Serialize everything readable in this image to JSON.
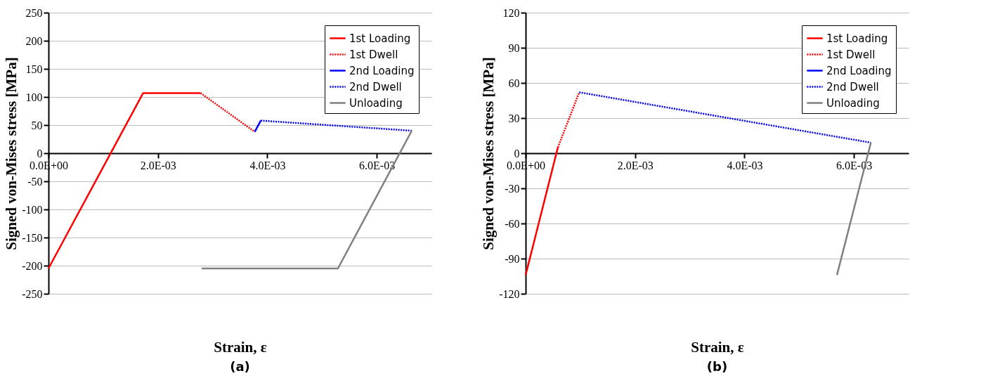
{
  "chart_data": [
    {
      "type": "line",
      "xlabel": "Strain, ε",
      "ylabel": "Signed von-Mises stress [MPa]",
      "annotations": [
        "(a)"
      ],
      "xlim": [
        0,
        0.007
      ],
      "xticks": [
        {
          "value": 0,
          "label": "0.0E+00"
        },
        {
          "value": 0.002,
          "label": "2.0E-03"
        },
        {
          "value": 0.004,
          "label": "4.0E-03"
        },
        {
          "value": 0.006,
          "label": "6.0E-03"
        }
      ],
      "ylim": [
        -250,
        250
      ],
      "yticks": [
        -250,
        -200,
        -150,
        -100,
        -50,
        0,
        50,
        100,
        150,
        200,
        250
      ],
      "grid": "y",
      "legend": "top right",
      "marker": "none",
      "series": [
        {
          "name": "1st Loading",
          "color": "#ff0000",
          "line_style": "solid",
          "x": [
            0,
            0.00173,
            0.00278
          ],
          "values": [
            -205,
            107,
            107
          ]
        },
        {
          "name": "1st Dwell",
          "color": "#ff0000",
          "line_style": "dotted",
          "x": [
            0.00278,
            0.00377
          ],
          "values": [
            107,
            38
          ]
        },
        {
          "name": "2nd Loading",
          "color": "#0000ff",
          "line_style": "solid",
          "x": [
            0.00377,
            0.00388
          ],
          "values": [
            38,
            58
          ]
        },
        {
          "name": "2nd Dwell",
          "color": "#0000ff",
          "line_style": "dotted",
          "x": [
            0.00388,
            0.00664
          ],
          "values": [
            58,
            40
          ]
        },
        {
          "name": "Unloading",
          "color": "#808080",
          "line_style": "solid",
          "x": [
            0.0028,
            0.00529,
            0.00664
          ],
          "values": [
            -205,
            -205,
            40
          ]
        }
      ]
    },
    {
      "type": "line",
      "xlabel": "Strain, ε",
      "ylabel": "Signed von-Mises stress [MPa]",
      "annotations": [
        "(b)"
      ],
      "xlim": [
        0,
        0.007
      ],
      "xticks": [
        {
          "value": 0,
          "label": "0.0E+00"
        },
        {
          "value": 0.002,
          "label": "2.0E-03"
        },
        {
          "value": 0.004,
          "label": "4.0E-03"
        },
        {
          "value": 0.006,
          "label": "6.0E-03"
        }
      ],
      "ylim": [
        -120,
        120
      ],
      "yticks": [
        -120,
        -90,
        -60,
        -30,
        0,
        30,
        60,
        90,
        120
      ],
      "grid": "y",
      "legend": "top right",
      "marker": "none",
      "series": [
        {
          "name": "1st Loading",
          "color": "#ff0000",
          "line_style": "solid",
          "x": [
            0,
            0.00059
          ],
          "values": [
            -104,
            5
          ]
        },
        {
          "name": "1st Dwell",
          "color": "#ff0000",
          "line_style": "dotted",
          "x": [
            0.00059,
            0.00098
          ],
          "values": [
            5,
            52
          ]
        },
        {
          "name": "2nd Loading",
          "color": "#0000ff",
          "line_style": "solid"
        },
        {
          "name": "2nd Dwell",
          "color": "#0000ff",
          "line_style": "dotted",
          "x": [
            0.00098,
            0.00631
          ],
          "values": [
            52,
            9
          ]
        },
        {
          "name": "Unloading",
          "color": "#808080",
          "line_style": "solid",
          "x": [
            0.00569,
            0.00631
          ],
          "values": [
            -104,
            9
          ]
        }
      ]
    }
  ]
}
